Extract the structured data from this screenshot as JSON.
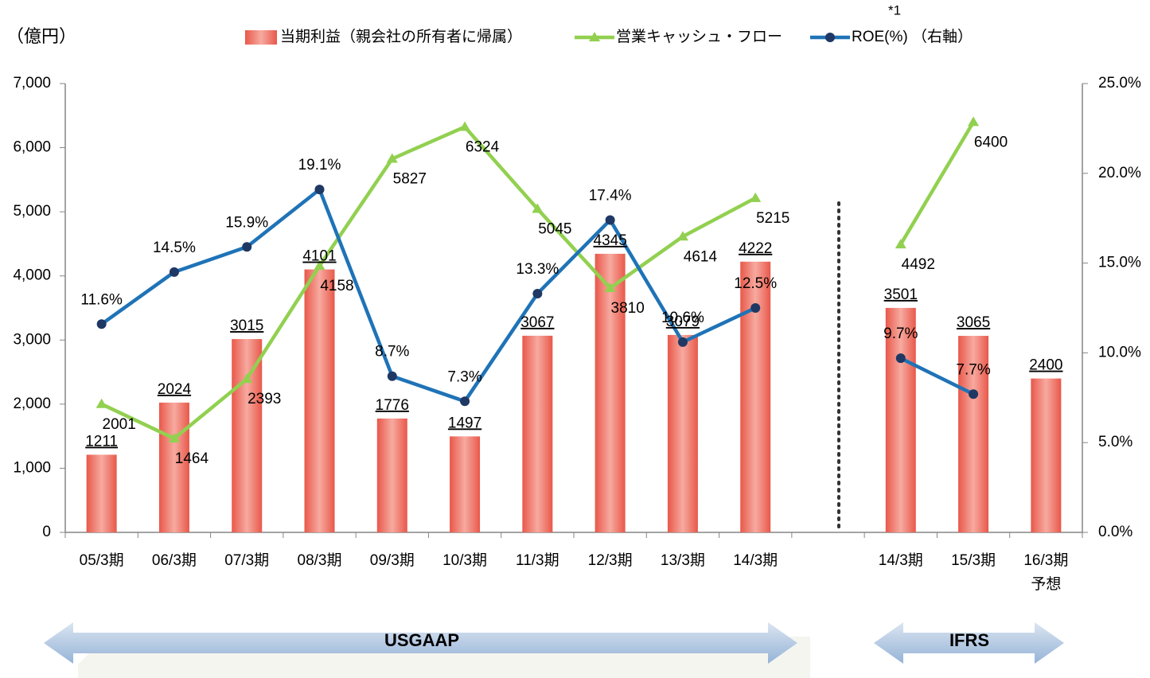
{
  "chart_data": {
    "type": "bar-line-combo",
    "unit_label": "（億円）",
    "annotation": "*1",
    "categories": [
      "05/3期",
      "06/3期",
      "07/3期",
      "08/3期",
      "09/3期",
      "10/3期",
      "11/3期",
      "12/3期",
      "13/3期",
      "14/3期",
      null,
      "14/3期",
      "15/3期",
      "16/3期\n予想"
    ],
    "series": [
      {
        "name": "当期利益（親会社の所有者に帰属）",
        "type": "bar",
        "color": "#e8584a",
        "values": [
          1211,
          2024,
          3015,
          4101,
          1776,
          1497,
          3067,
          4345,
          3079,
          4222,
          null,
          3501,
          3065,
          2400
        ]
      },
      {
        "name": "営業キャッシュ・フロー",
        "type": "line",
        "color": "#92d050",
        "values": [
          2001,
          1464,
          2393,
          4158,
          5827,
          6324,
          5045,
          3810,
          4614,
          5215,
          null,
          4492,
          6400,
          null
        ]
      },
      {
        "name": "ROE(%) （右軸）",
        "type": "line",
        "axis": "y2",
        "color": "#1f73b7",
        "values": [
          11.6,
          14.5,
          15.9,
          19.1,
          8.7,
          7.3,
          13.3,
          17.4,
          10.6,
          12.5,
          null,
          9.7,
          7.7,
          null
        ],
        "value_labels": [
          "11.6%",
          "14.5%",
          "15.9%",
          "19.1%",
          "8.7%",
          "7.3%",
          "13.3%",
          "17.4%",
          "10.6%",
          "12.5%",
          null,
          "9.7%",
          "7.7%",
          null
        ]
      }
    ],
    "ylim": [
      0,
      7000
    ],
    "yticks": [
      0,
      {
        "value": 1000,
        "label": "1,000"
      },
      {
        "value": 2000,
        "label": "2,000"
      },
      {
        "value": 3000,
        "label": "3,000"
      },
      {
        "value": 4000,
        "label": "4,000"
      },
      {
        "value": 5000,
        "label": "5,000"
      },
      {
        "value": 6000,
        "label": "6,000"
      },
      {
        "value": 7000,
        "label": "7,000"
      }
    ],
    "y2lim": [
      0,
      25
    ],
    "y2ticks": [
      {
        "value": 0,
        "label": "0.0%"
      },
      {
        "value": 5,
        "label": "5.0%"
      },
      {
        "value": 10,
        "label": "10.0%"
      },
      {
        "value": 15,
        "label": "15.0%"
      },
      {
        "value": 20,
        "label": "20.0%"
      },
      {
        "value": 25,
        "label": "25.0%"
      }
    ],
    "regions": [
      "USGAAP",
      "IFRS"
    ],
    "grid": false
  }
}
